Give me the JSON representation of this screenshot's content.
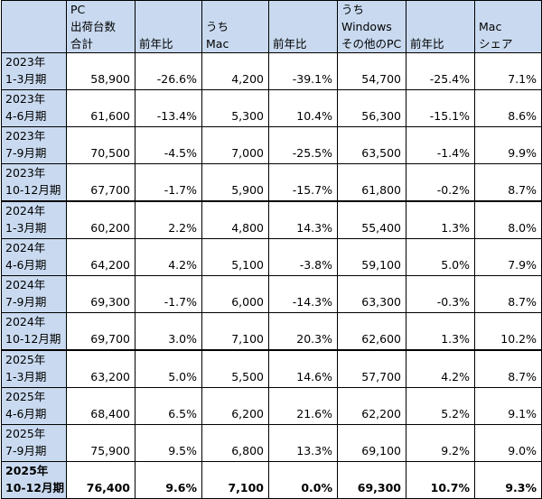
{
  "headers": [
    {
      "lines": [
        "",
        "",
        ""
      ]
    },
    {
      "lines": [
        "PC",
        "出荷台数",
        "合計"
      ]
    },
    {
      "lines": [
        "前年比"
      ]
    },
    {
      "lines": [
        "うち",
        "Mac"
      ]
    },
    {
      "lines": [
        "前年比"
      ]
    },
    {
      "lines": [
        "うち",
        "Windows",
        "その他のPC"
      ]
    },
    {
      "lines": [
        "前年比"
      ]
    },
    {
      "lines": [
        "Mac",
        "シェア"
      ]
    }
  ],
  "rows": [
    {
      "year": "2023年",
      "period": "1-3月期",
      "cells": [
        "58,900",
        "-26.6%",
        "4,200",
        "-39.1%",
        "54,700",
        "-25.4%",
        "7.1%"
      ]
    },
    {
      "year": "2023年",
      "period": "4-6月期",
      "cells": [
        "61,600",
        "-13.4%",
        "5,300",
        "10.4%",
        "56,300",
        "-15.1%",
        "8.6%"
      ]
    },
    {
      "year": "2023年",
      "period": "7-9月期",
      "cells": [
        "70,500",
        "-4.5%",
        "7,000",
        "-25.5%",
        "63,500",
        "-1.4%",
        "9.9%"
      ]
    },
    {
      "year": "2023年",
      "period": "10-12月期",
      "cells": [
        "67,700",
        "-1.7%",
        "5,900",
        "-15.7%",
        "61,800",
        "-0.2%",
        "8.7%"
      ]
    },
    {
      "year": "2024年",
      "period": "1-3月期",
      "cells": [
        "60,200",
        "2.2%",
        "4,800",
        "14.3%",
        "55,400",
        "1.3%",
        "8.0%"
      ]
    },
    {
      "year": "2024年",
      "period": "4-6月期",
      "cells": [
        "64,200",
        "4.2%",
        "5,100",
        "-3.8%",
        "59,100",
        "5.0%",
        "7.9%"
      ]
    },
    {
      "year": "2024年",
      "period": "7-9月期",
      "cells": [
        "69,300",
        "-1.7%",
        "6,000",
        "-14.3%",
        "63,300",
        "-0.3%",
        "8.7%"
      ]
    },
    {
      "year": "2024年",
      "period": "10-12月期",
      "cells": [
        "69,700",
        "3.0%",
        "7,100",
        "20.3%",
        "62,600",
        "1.3%",
        "10.2%"
      ]
    },
    {
      "year": "2025年",
      "period": "1-3月期",
      "cells": [
        "63,200",
        "5.0%",
        "5,500",
        "14.6%",
        "57,700",
        "4.2%",
        "8.7%"
      ]
    },
    {
      "year": "2025年",
      "period": "4-6月期",
      "cells": [
        "68,400",
        "6.5%",
        "6,200",
        "21.6%",
        "62,200",
        "5.2%",
        "9.1%"
      ]
    },
    {
      "year": "2025年",
      "period": "7-9月期",
      "cells": [
        "75,900",
        "9.5%",
        "6,800",
        "13.3%",
        "69,100",
        "9.2%",
        "9.0%"
      ]
    },
    {
      "year": "2025年",
      "period": "10-12月期",
      "cells": [
        "76,400",
        "9.6%",
        "7,100",
        "0.0%",
        "69,300",
        "10.7%",
        "9.3%"
      ]
    }
  ]
}
